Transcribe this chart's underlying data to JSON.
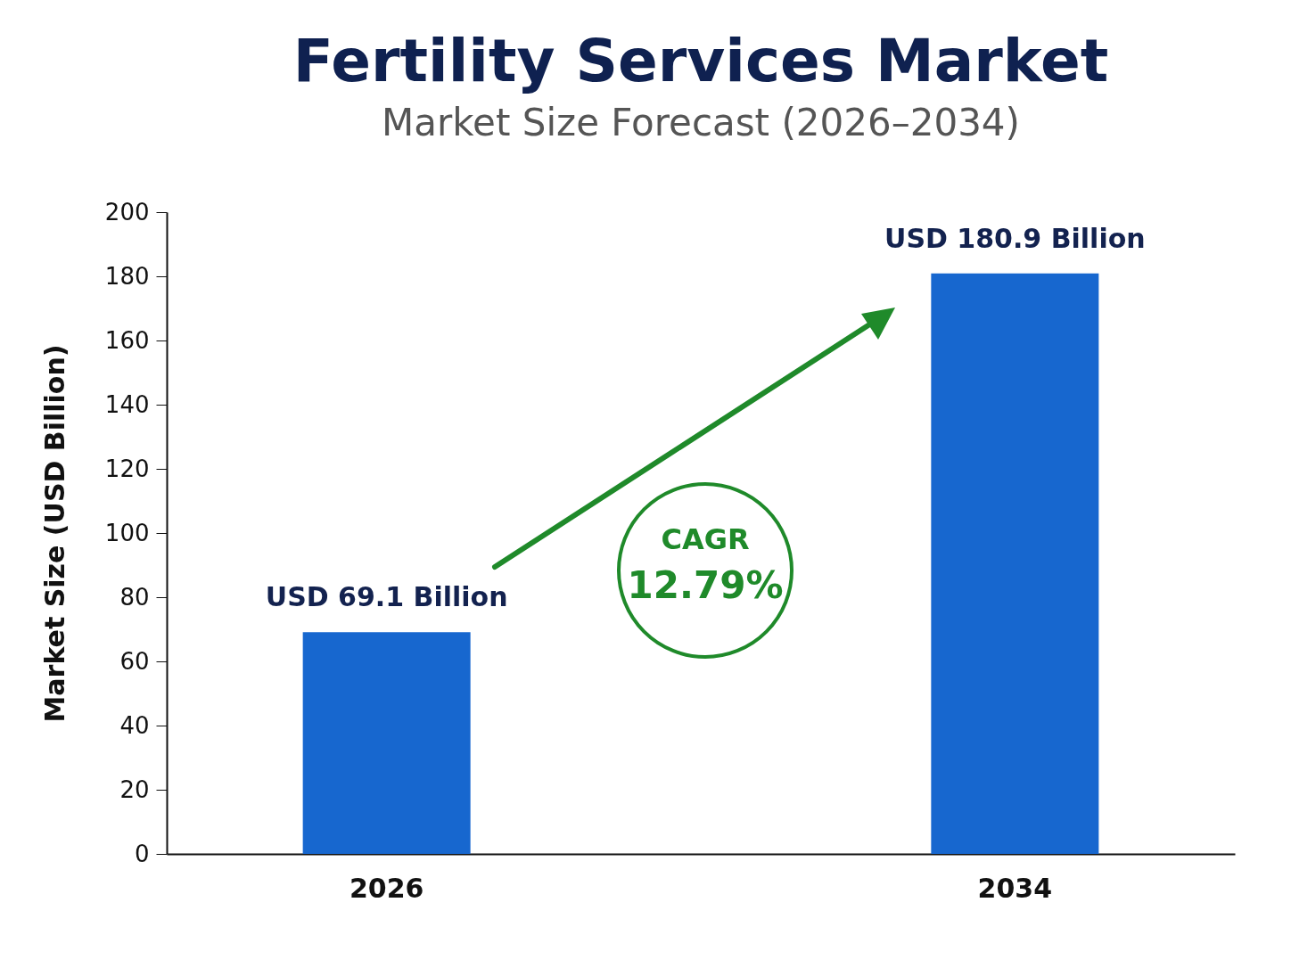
{
  "chart_data": {
    "type": "bar",
    "title": "Fertility Services Market",
    "subtitle": "Market Size Forecast (2026–2034)",
    "ylabel": "Market Size (USD Billion)",
    "categories": [
      "2026",
      "2034"
    ],
    "values": [
      69.1,
      180.9
    ],
    "value_labels": [
      "USD 69.1 Billion",
      "USD 180.9 Billion"
    ],
    "color": "#1767cf",
    "ylim": [
      0,
      200
    ],
    "yticks": [
      0,
      20,
      40,
      60,
      80,
      100,
      120,
      140,
      160,
      180,
      200
    ],
    "annotations": [
      "CAGR",
      "12.79%"
    ]
  }
}
